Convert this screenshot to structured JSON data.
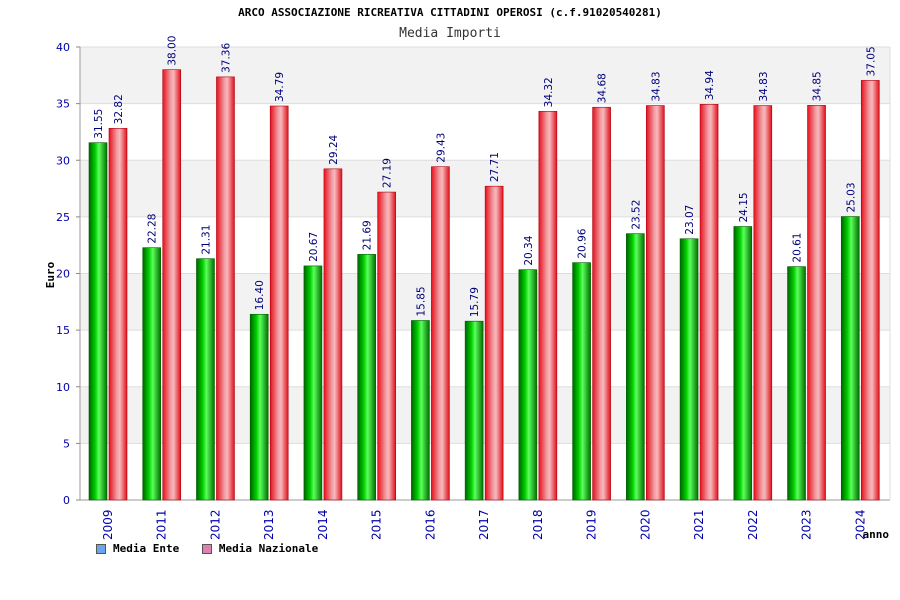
{
  "chart_data": {
    "type": "bar",
    "title": "ARCO ASSOCIAZIONE RICREATIVA CITTADINI OPEROSI (c.f.91020540281)",
    "subtitle": "Media Importi",
    "xlabel": "anno",
    "ylabel": "Euro",
    "ylim": [
      0,
      40
    ],
    "yticks": [
      0,
      5,
      10,
      15,
      20,
      25,
      30,
      35,
      40
    ],
    "categories": [
      "2009",
      "2011",
      "2012",
      "2013",
      "2014",
      "2015",
      "2016",
      "2017",
      "2018",
      "2019",
      "2020",
      "2021",
      "2022",
      "2023",
      "2024"
    ],
    "series": [
      {
        "name": "Media Ente",
        "color": "#00a000",
        "legend_color": "#6aa6e8",
        "values": [
          31.55,
          22.28,
          21.31,
          16.4,
          20.67,
          21.69,
          15.85,
          15.79,
          20.34,
          20.96,
          23.52,
          23.07,
          24.15,
          20.61,
          25.03
        ],
        "labels": [
          "31.55",
          "22.28",
          "21.31",
          "16.40",
          "20.67",
          "21.69",
          "15.85",
          "15.79",
          "20.34",
          "20.96",
          "23.52",
          "23.07",
          "24.15",
          "20.61",
          "25.03"
        ]
      },
      {
        "name": "Media Nazionale",
        "color": "#e8202a",
        "legend_color": "#e080b0",
        "values": [
          32.82,
          38.0,
          37.36,
          34.79,
          29.24,
          27.19,
          29.43,
          27.71,
          34.32,
          34.68,
          34.83,
          34.94,
          34.83,
          34.85,
          37.05
        ],
        "labels": [
          "32.82",
          "38.00",
          "37.36",
          "34.79",
          "29.24",
          "27.19",
          "29.43",
          "27.71",
          "34.32",
          "34.68",
          "34.83",
          "34.94",
          "34.83",
          "34.85",
          "37.05"
        ]
      }
    ],
    "grid": true,
    "legend_position": "bottom-left"
  }
}
